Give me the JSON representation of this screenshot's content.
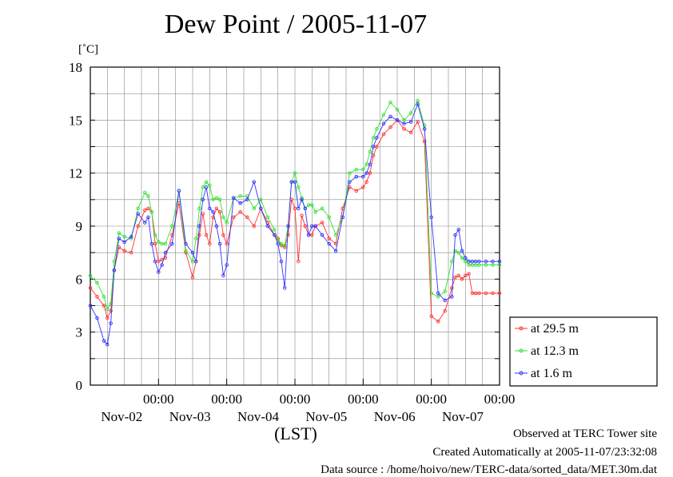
{
  "title": "Dew Point / 2005-11-07",
  "unit_label": "[˚C]",
  "xlabel": "(LST)",
  "footer": {
    "line1": "Observed at TERC Tower site",
    "line2": "Created Automatically at 2005-11-07/23:32:08",
    "line3": "Data source : /home/hoivo/new/TERC-data/sorted_data/MET.30m.dat"
  },
  "colors": {
    "series_29_5": "#ff3030",
    "series_12_3": "#30e030",
    "series_1_6": "#3030ff",
    "grid": "#888888"
  },
  "chart_data": {
    "type": "line",
    "title": "Dew Point / 2005-11-07",
    "ylabel": "[˚C]",
    "xlabel": "(LST)",
    "ylim": [
      0,
      18
    ],
    "yticks": [
      "0",
      "3",
      "6",
      "9",
      "12",
      "15",
      "18"
    ],
    "xlim_days": [
      0,
      6
    ],
    "xtick_hour_label": "00:00",
    "xtick_date_labels": [
      "Nov-02",
      "Nov-03",
      "Nov-04",
      "Nov-05",
      "Nov-06",
      "Nov-07"
    ],
    "grid": true,
    "legend_position": "right",
    "series": [
      {
        "name": "at 29.5 m",
        "color": "#ff3030",
        "x": [
          0.0,
          0.1,
          0.2,
          0.25,
          0.3,
          0.35,
          0.42,
          0.5,
          0.6,
          0.7,
          0.8,
          0.85,
          0.9,
          0.95,
          1.0,
          1.05,
          1.1,
          1.2,
          1.3,
          1.4,
          1.5,
          1.55,
          1.6,
          1.65,
          1.7,
          1.75,
          1.8,
          1.85,
          1.9,
          1.95,
          2.0,
          2.1,
          2.2,
          2.3,
          2.4,
          2.5,
          2.6,
          2.7,
          2.75,
          2.8,
          2.85,
          2.9,
          2.95,
          3.0,
          3.05,
          3.1,
          3.15,
          3.2,
          3.25,
          3.3,
          3.4,
          3.5,
          3.6,
          3.7,
          3.8,
          3.9,
          4.0,
          4.05,
          4.1,
          4.15,
          4.2,
          4.3,
          4.4,
          4.5,
          4.6,
          4.7,
          4.8,
          4.9,
          5.0,
          5.1,
          5.2,
          5.3,
          5.35,
          5.4,
          5.45,
          5.5,
          5.55,
          5.6,
          5.65,
          5.7,
          5.8,
          5.9,
          6.0
        ],
        "y": [
          5.5,
          5.0,
          4.5,
          3.8,
          4.2,
          6.5,
          7.8,
          7.6,
          7.5,
          9.0,
          9.9,
          10.0,
          9.8,
          8.0,
          7.0,
          7.1,
          7.2,
          8.5,
          10.3,
          7.5,
          6.1,
          7.0,
          8.5,
          9.7,
          8.5,
          8.0,
          9.5,
          10.0,
          9.8,
          8.5,
          8.0,
          9.5,
          9.8,
          9.5,
          9.0,
          10.0,
          9.2,
          8.5,
          8.3,
          7.9,
          7.8,
          8.5,
          10.5,
          10.0,
          7.0,
          9.6,
          9.0,
          8.5,
          8.5,
          9.0,
          9.2,
          8.3,
          8.0,
          10.0,
          11.2,
          11.0,
          11.2,
          11.5,
          12.0,
          13.0,
          13.5,
          14.2,
          14.6,
          15.0,
          14.5,
          14.3,
          14.9,
          13.8,
          3.9,
          3.6,
          4.2,
          5.5,
          6.1,
          6.2,
          6.0,
          6.2,
          6.3,
          5.2,
          5.2,
          5.2,
          5.2,
          5.2,
          5.2
        ]
      },
      {
        "name": "at 12.3 m",
        "color": "#30e030",
        "x": [
          0.0,
          0.1,
          0.2,
          0.25,
          0.3,
          0.35,
          0.42,
          0.5,
          0.6,
          0.7,
          0.8,
          0.85,
          0.9,
          0.95,
          1.0,
          1.05,
          1.1,
          1.2,
          1.3,
          1.4,
          1.5,
          1.55,
          1.6,
          1.65,
          1.7,
          1.75,
          1.8,
          1.85,
          1.9,
          1.95,
          2.0,
          2.1,
          2.2,
          2.3,
          2.4,
          2.5,
          2.6,
          2.7,
          2.75,
          2.8,
          2.85,
          2.9,
          2.95,
          3.0,
          3.05,
          3.1,
          3.15,
          3.2,
          3.25,
          3.3,
          3.4,
          3.5,
          3.6,
          3.7,
          3.8,
          3.9,
          4.0,
          4.05,
          4.1,
          4.15,
          4.2,
          4.3,
          4.4,
          4.5,
          4.6,
          4.7,
          4.8,
          4.9,
          5.0,
          5.1,
          5.2,
          5.3,
          5.35,
          5.4,
          5.45,
          5.5,
          5.55,
          5.6,
          5.65,
          5.7,
          5.8,
          5.9,
          6.0
        ],
        "y": [
          6.2,
          5.8,
          5.0,
          4.3,
          4.6,
          7.0,
          8.6,
          8.4,
          8.3,
          10.0,
          10.9,
          10.7,
          9.8,
          8.5,
          8.1,
          8.0,
          8.0,
          9.0,
          11.0,
          7.6,
          7.0,
          8.3,
          10.0,
          11.2,
          11.5,
          11.3,
          10.5,
          10.6,
          10.5,
          9.5,
          9.2,
          10.6,
          10.7,
          10.7,
          10.0,
          10.5,
          9.5,
          8.8,
          8.2,
          8.0,
          7.9,
          9.0,
          11.5,
          12.0,
          11.2,
          10.6,
          10.0,
          10.2,
          10.2,
          9.8,
          10.0,
          9.5,
          8.5,
          9.5,
          12.0,
          12.2,
          12.2,
          12.5,
          13.2,
          14.0,
          14.5,
          15.3,
          16.0,
          15.6,
          15.0,
          15.4,
          16.1,
          14.7,
          5.2,
          5.0,
          5.3,
          7.0,
          7.6,
          7.5,
          7.2,
          7.0,
          6.8,
          6.8,
          6.8,
          6.8,
          6.8,
          6.8,
          6.8
        ]
      },
      {
        "name": "at 1.6 m",
        "color": "#3030ff",
        "x": [
          0.0,
          0.1,
          0.2,
          0.25,
          0.3,
          0.35,
          0.42,
          0.5,
          0.6,
          0.7,
          0.8,
          0.85,
          0.9,
          0.95,
          1.0,
          1.05,
          1.1,
          1.2,
          1.3,
          1.4,
          1.5,
          1.55,
          1.6,
          1.65,
          1.7,
          1.75,
          1.8,
          1.85,
          1.9,
          1.95,
          2.0,
          2.1,
          2.2,
          2.3,
          2.4,
          2.5,
          2.6,
          2.7,
          2.75,
          2.8,
          2.85,
          2.9,
          2.95,
          3.0,
          3.05,
          3.1,
          3.15,
          3.2,
          3.25,
          3.3,
          3.4,
          3.5,
          3.6,
          3.7,
          3.8,
          3.9,
          4.0,
          4.05,
          4.1,
          4.15,
          4.2,
          4.3,
          4.4,
          4.5,
          4.6,
          4.7,
          4.8,
          4.9,
          5.0,
          5.1,
          5.2,
          5.3,
          5.35,
          5.4,
          5.45,
          5.5,
          5.55,
          5.6,
          5.65,
          5.7,
          5.8,
          5.9,
          6.0
        ],
        "y": [
          4.5,
          3.8,
          2.5,
          2.3,
          3.5,
          6.5,
          8.3,
          8.1,
          8.4,
          9.7,
          9.2,
          9.5,
          8.0,
          7.0,
          6.4,
          6.8,
          7.5,
          8.0,
          11.0,
          8.0,
          7.5,
          7.0,
          9.0,
          10.5,
          11.2,
          10.0,
          9.8,
          9.0,
          8.0,
          6.2,
          6.8,
          10.6,
          10.3,
          10.5,
          11.5,
          10.0,
          9.0,
          8.5,
          8.0,
          7.0,
          5.5,
          9.0,
          11.5,
          11.5,
          10.0,
          10.5,
          10.0,
          8.5,
          9.0,
          9.0,
          8.5,
          8.0,
          7.6,
          9.5,
          11.5,
          11.8,
          11.8,
          12.0,
          12.5,
          13.5,
          14.0,
          14.8,
          15.2,
          15.0,
          14.8,
          14.9,
          15.9,
          14.5,
          9.5,
          5.2,
          4.8,
          5.0,
          8.5,
          8.8,
          7.6,
          7.2,
          7.0,
          7.0,
          7.0,
          7.0,
          7.0,
          7.0,
          7.0
        ]
      }
    ]
  }
}
